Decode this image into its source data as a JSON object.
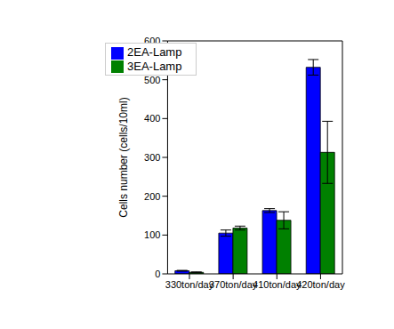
{
  "chart_data": {
    "type": "bar",
    "categories": [
      "330ton/day",
      "370ton/day",
      "410ton/day",
      "420ton/day"
    ],
    "y_label": "Cells number (cells/10ml)",
    "series": [
      {
        "name": "2EA-Lamp",
        "color": "#0000ff",
        "values": [
          8,
          105,
          163,
          532
        ],
        "errors": [
          1,
          8,
          5,
          20
        ]
      },
      {
        "name": "3EA-Lamp",
        "color": "#008000",
        "values": [
          4,
          118,
          138,
          313
        ],
        "errors": [
          1,
          5,
          22,
          80
        ]
      }
    ],
    "ylim": [
      0,
      600
    ],
    "yticks": [
      0,
      100,
      200,
      300,
      400,
      500,
      600
    ],
    "grid": false,
    "legend": "upper left"
  }
}
